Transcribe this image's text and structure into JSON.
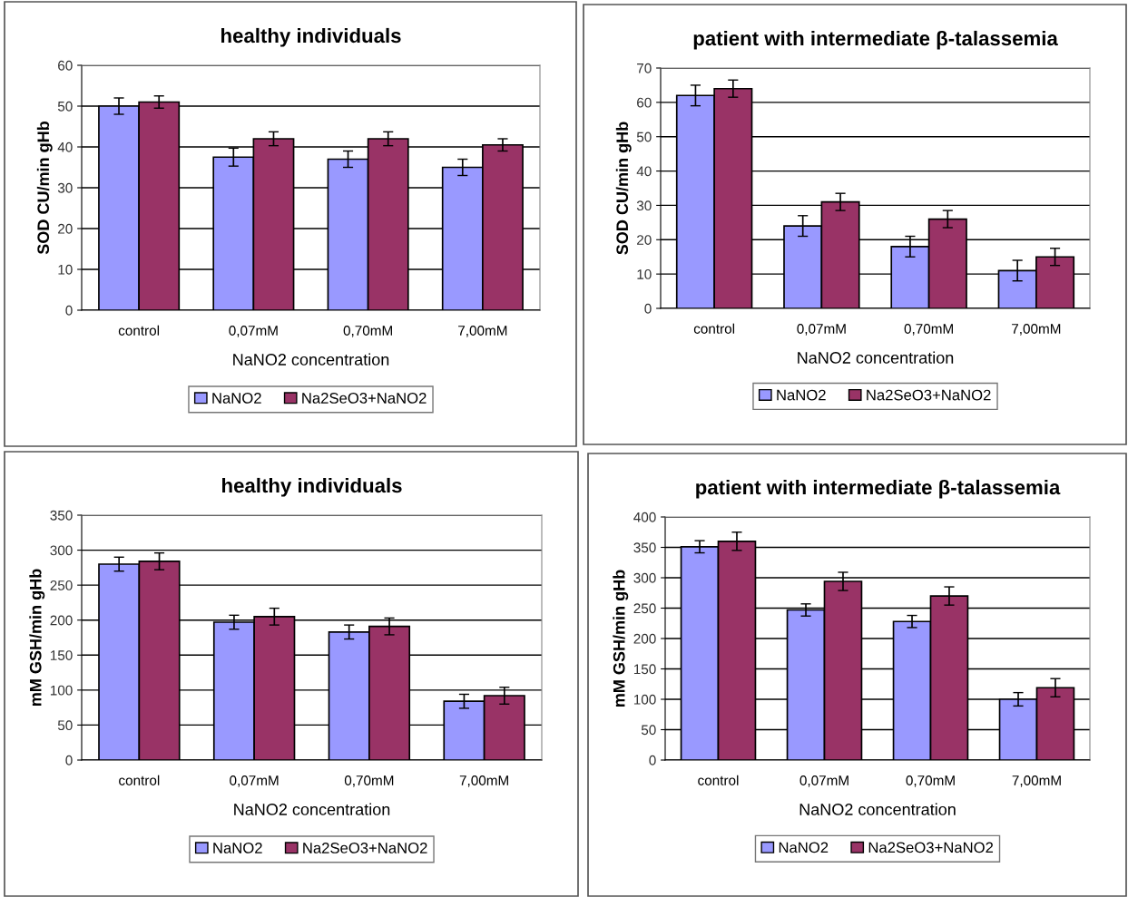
{
  "chart_data": [
    {
      "type": "bar",
      "title": "healthy individuals",
      "xlabel": "NaNO2 concentration",
      "ylabel": "SOD CU/min gHb",
      "categories": [
        "control",
        "0,07mM",
        "0,70mM",
        "7,00mM"
      ],
      "ylim": [
        0,
        60
      ],
      "yticks": [
        0,
        10,
        20,
        30,
        40,
        50,
        60
      ],
      "grid": "y",
      "legend": "bottom",
      "series": [
        {
          "name": "NaNO2",
          "color": "#9999ff",
          "values": [
            50,
            37.5,
            37,
            35
          ],
          "errors": [
            2,
            2.2,
            2,
            2
          ]
        },
        {
          "name": "Na2SeO3+NaNO2",
          "color": "#993366",
          "values": [
            51,
            42,
            42,
            40.5
          ],
          "errors": [
            1.5,
            1.7,
            1.7,
            1.5
          ]
        }
      ]
    },
    {
      "type": "bar",
      "title": "patient with intermediate β-talassemia",
      "xlabel": "NaNO2 concentration",
      "ylabel": "SOD CU/min gHb",
      "categories": [
        "control",
        "0,07mM",
        "0,70mM",
        "7,00mM"
      ],
      "ylim": [
        0,
        70
      ],
      "yticks": [
        0,
        10,
        20,
        30,
        40,
        50,
        60,
        70
      ],
      "grid": "y",
      "legend": "bottom",
      "series": [
        {
          "name": "NaNO2",
          "color": "#9999ff",
          "values": [
            62,
            24,
            18,
            11
          ],
          "errors": [
            3,
            3,
            3,
            3
          ]
        },
        {
          "name": "Na2SeO3+NaNO2",
          "color": "#993366",
          "values": [
            64,
            31,
            26,
            15
          ],
          "errors": [
            2.5,
            2.5,
            2.5,
            2.5
          ]
        }
      ]
    },
    {
      "type": "bar",
      "title": "healthy individuals",
      "xlabel": "NaNO2 concentration",
      "ylabel": "mM GSH/min gHb",
      "categories": [
        "control",
        "0,07mM",
        "0,70mM",
        "7,00mM"
      ],
      "ylim": [
        0,
        350
      ],
      "yticks": [
        0,
        50,
        100,
        150,
        200,
        250,
        300,
        350
      ],
      "grid": "y",
      "legend": "bottom",
      "series": [
        {
          "name": "NaNO2",
          "color": "#9999ff",
          "values": [
            280,
            197,
            183,
            84
          ],
          "errors": [
            10,
            10,
            10,
            10
          ]
        },
        {
          "name": "Na2SeO3+NaNO2",
          "color": "#993366",
          "values": [
            284,
            205,
            191,
            92
          ],
          "errors": [
            12,
            12,
            12,
            12
          ]
        }
      ]
    },
    {
      "type": "bar",
      "title": "patient with intermediate β-talassemia",
      "xlabel": "NaNO2 concentration",
      "ylabel": "mM GSH/min gHb",
      "categories": [
        "control",
        "0,07mM",
        "0,70mM",
        "7,00mM"
      ],
      "ylim": [
        0,
        400
      ],
      "yticks": [
        0,
        50,
        100,
        150,
        200,
        250,
        300,
        350,
        400
      ],
      "grid": "y",
      "legend": "bottom",
      "series": [
        {
          "name": "NaNO2",
          "color": "#9999ff",
          "values": [
            351,
            247,
            228,
            100
          ],
          "errors": [
            10,
            10,
            10,
            11
          ]
        },
        {
          "name": "Na2SeO3+NaNO2",
          "color": "#993366",
          "values": [
            360,
            294,
            270,
            119
          ],
          "errors": [
            15,
            15,
            15,
            15
          ]
        }
      ]
    }
  ]
}
